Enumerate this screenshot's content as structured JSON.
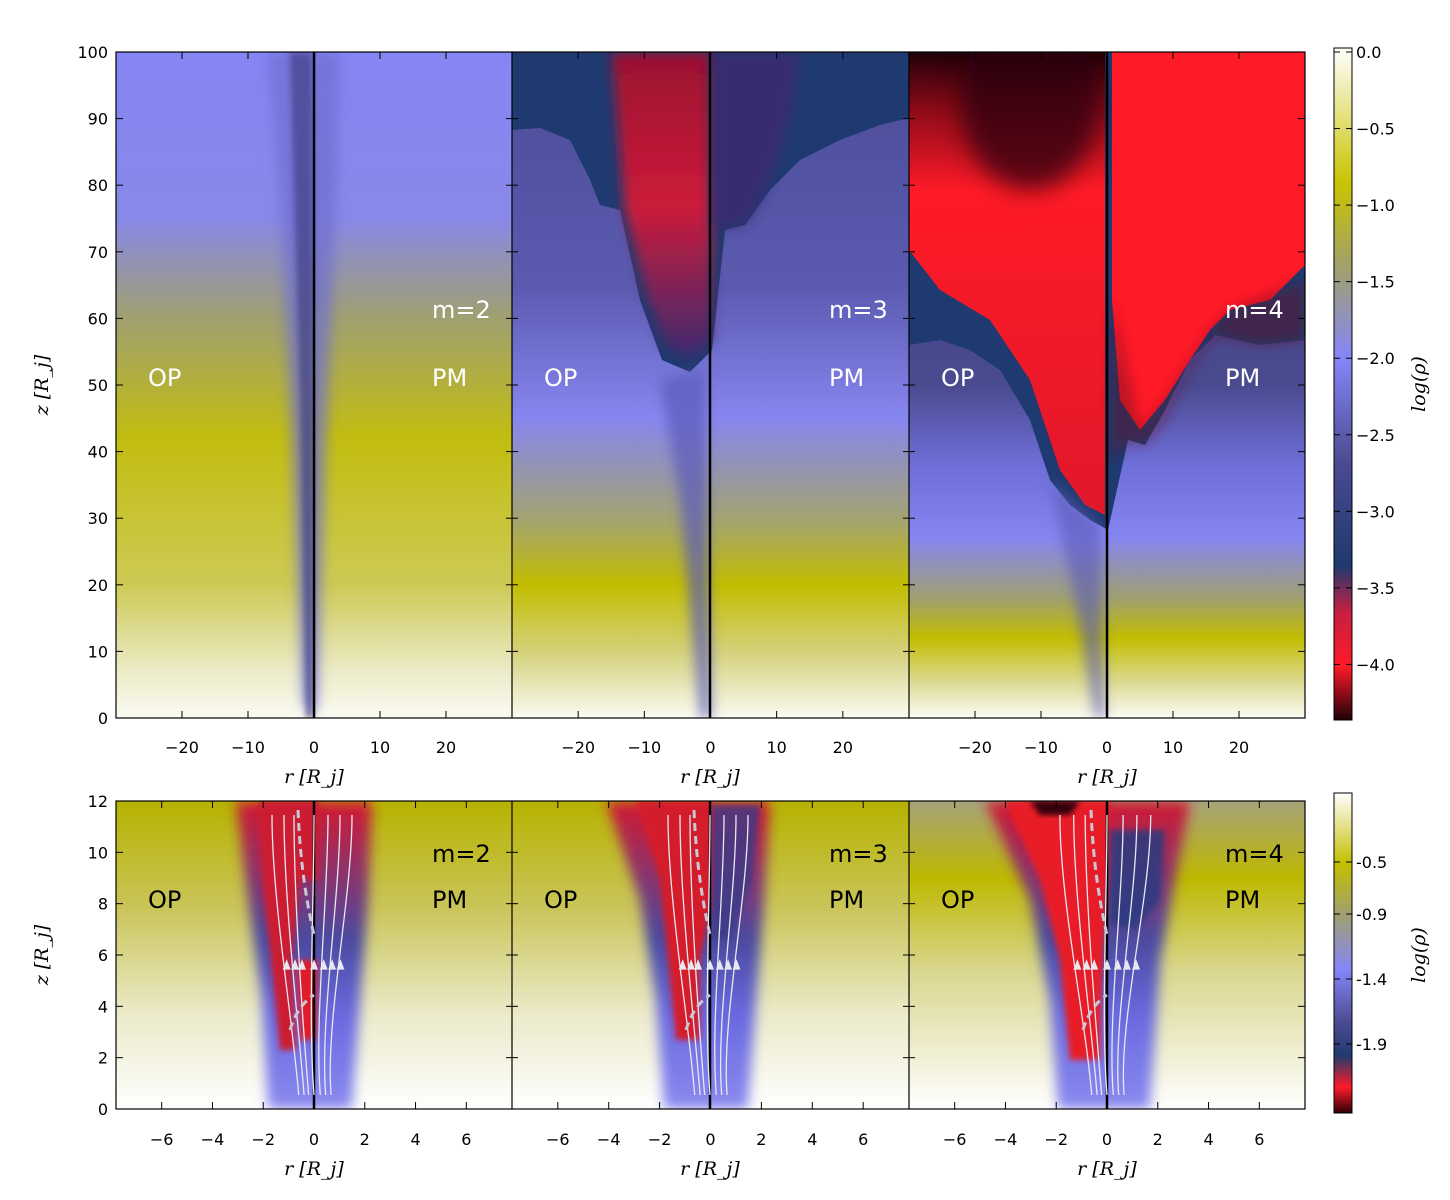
{
  "chart_data": [
    {
      "type": "heatmap",
      "row": "top",
      "panels": [
        {
          "mode_label": "m=2",
          "left_label": "OP",
          "right_label": "PM"
        },
        {
          "mode_label": "m=3",
          "left_label": "OP",
          "right_label": "PM"
        },
        {
          "mode_label": "m=4",
          "left_label": "OP",
          "right_label": "PM"
        }
      ],
      "xlabel": "r [R_j]",
      "ylabel": "z [R_j]",
      "xlim": [
        -30,
        30
      ],
      "ylim": [
        0,
        100
      ],
      "xticks": [
        "−20",
        "−10",
        "0",
        "10",
        "20"
      ],
      "xtick_values": [
        -20,
        -10,
        0,
        10,
        20
      ],
      "yticks": [
        "0",
        "10",
        "20",
        "30",
        "40",
        "50",
        "60",
        "70",
        "80",
        "90",
        "100"
      ],
      "ytick_values": [
        0,
        10,
        20,
        30,
        40,
        50,
        60,
        70,
        80,
        90,
        100
      ],
      "colorbar": {
        "label": "log(ρ)",
        "range": [
          -4.35,
          0.0
        ],
        "ticks": [
          "0.0",
          "−0.5",
          "−1.0",
          "−1.5",
          "−2.0",
          "−2.5",
          "−3.0",
          "−3.5",
          "−4.0"
        ],
        "tick_values": [
          0.0,
          -0.5,
          -1.0,
          -1.5,
          -2.0,
          -2.5,
          -3.0,
          -3.5,
          -4.0
        ]
      }
    },
    {
      "type": "heatmap",
      "row": "bottom",
      "panels": [
        {
          "mode_label": "m=2",
          "left_label": "OP",
          "right_label": "PM"
        },
        {
          "mode_label": "m=3",
          "left_label": "OP",
          "right_label": "PM"
        },
        {
          "mode_label": "m=4",
          "left_label": "OP",
          "right_label": "PM"
        }
      ],
      "xlabel": "r [R_j]",
      "ylabel": "z [R_j]",
      "xlim": [
        -7.8,
        7.8
      ],
      "ylim": [
        0,
        12
      ],
      "xticks": [
        "−6",
        "−4",
        "−2",
        "0",
        "2",
        "4",
        "6"
      ],
      "xtick_values": [
        -6,
        -4,
        -2,
        0,
        2,
        4,
        6
      ],
      "yticks": [
        "0",
        "2",
        "4",
        "6",
        "8",
        "10",
        "12"
      ],
      "ytick_values": [
        0,
        2,
        4,
        6,
        8,
        10,
        12
      ],
      "colorbar": {
        "label": "log(ρ)",
        "range": [
          -2.4,
          0.0
        ],
        "ticks": [
          "-0.5",
          "-0.9",
          "-1.4",
          "-1.9"
        ],
        "tick_values": [
          -0.5,
          -0.9,
          -1.4,
          -1.9
        ]
      }
    }
  ],
  "colors": {
    "background_low_z": "#fbfbf3",
    "yellow": "#c2bd00",
    "olive": "#a0a060",
    "periwinkle": "#8585f5",
    "slate": "#4a4a90",
    "navy": "#1f3a70",
    "red": "#ff1a28",
    "dark_red": "#3a0008",
    "axis": "#000000",
    "annot_light": "#ffffff",
    "annot_dark": "#000000"
  }
}
